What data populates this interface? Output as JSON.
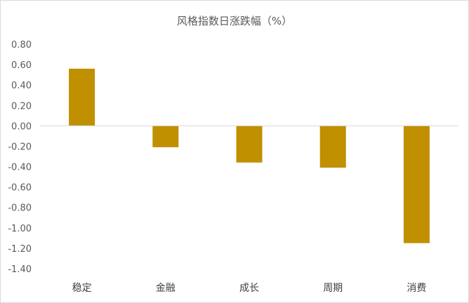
{
  "chart_data": {
    "type": "bar",
    "title": "风格指数日涨跌幅（%）",
    "categories": [
      "稳定",
      "金融",
      "成长",
      "周期",
      "消费"
    ],
    "values": [
      0.56,
      -0.21,
      -0.36,
      -0.41,
      -1.15
    ],
    "ylim": [
      -1.4,
      0.8
    ],
    "yticks": [
      "0.80",
      "0.60",
      "0.40",
      "0.20",
      "0.00",
      "-0.20",
      "-0.40",
      "-0.60",
      "-0.80",
      "-1.00",
      "-1.20",
      "-1.40"
    ],
    "xlabel": "",
    "ylabel": "",
    "grid": false,
    "legend": "none",
    "bar_color": "#C09000",
    "axis_color": "#d9d9d9"
  }
}
